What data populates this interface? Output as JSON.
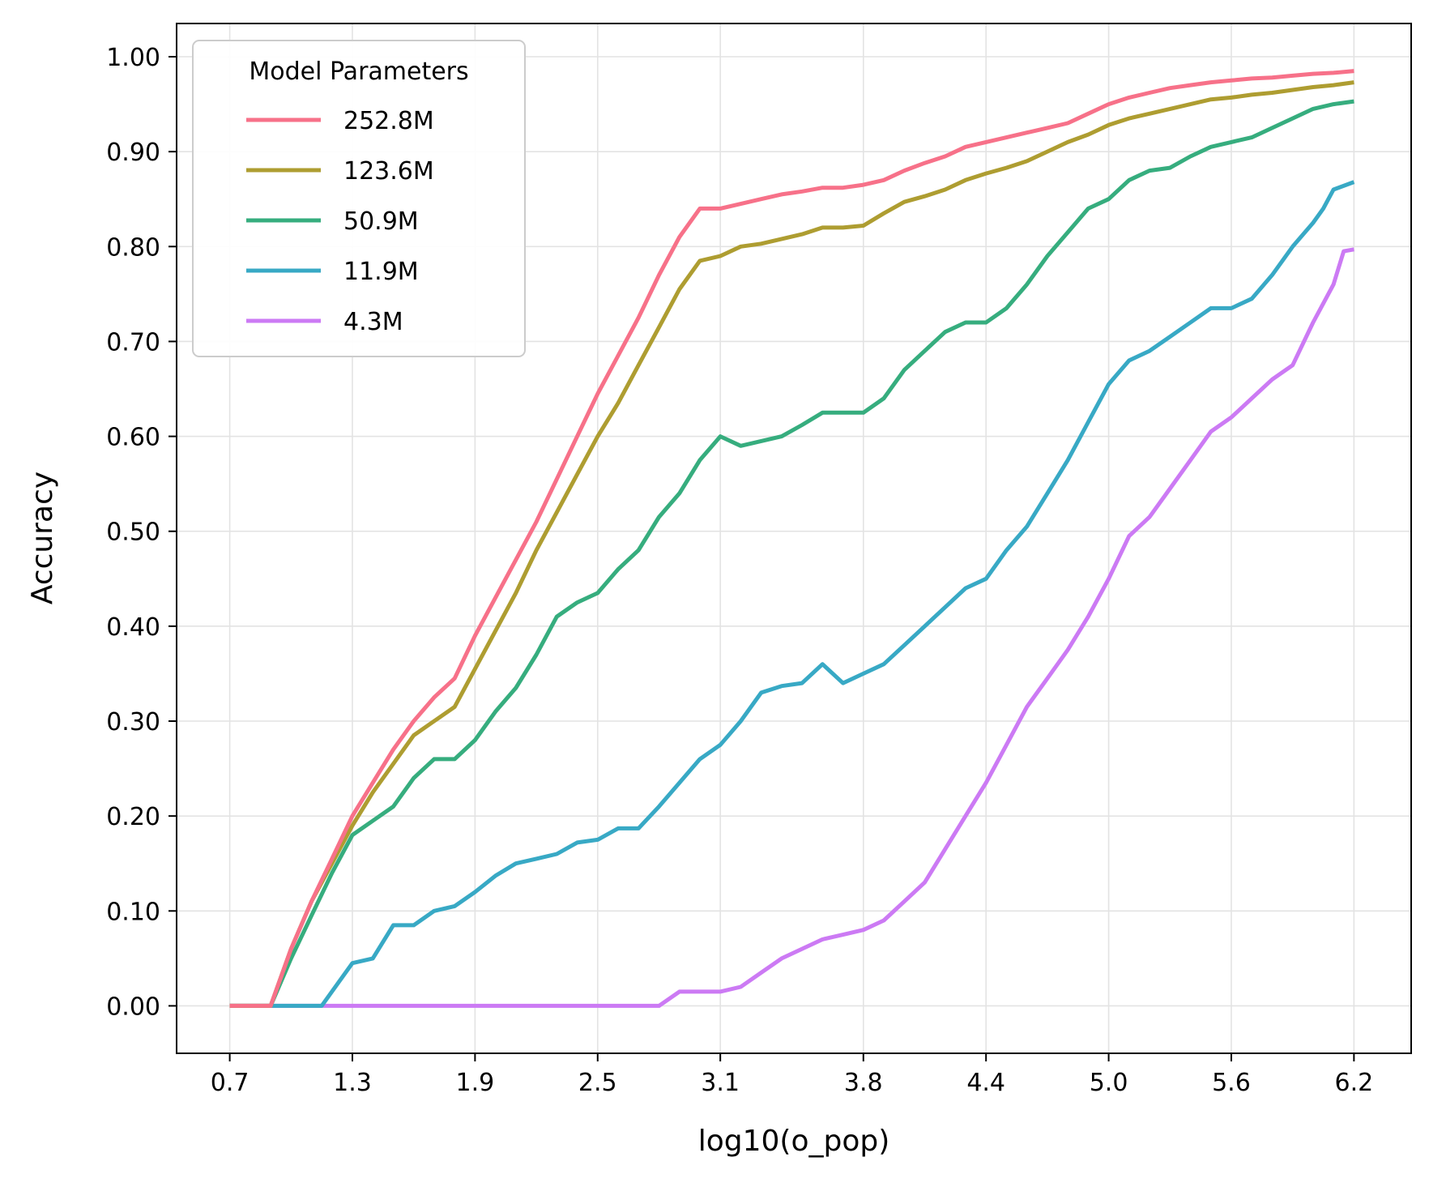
{
  "chart_data": {
    "type": "line",
    "title": "",
    "xlabel": "log10(o_pop)",
    "ylabel": "Accuracy",
    "xlim": [
      0.44,
      6.48
    ],
    "ylim": [
      -0.05,
      1.035
    ],
    "grid": true,
    "x_ticks": [
      0.7,
      1.3,
      1.9,
      2.5,
      3.1,
      3.8,
      4.4,
      5.0,
      5.6,
      6.2
    ],
    "x_tick_labels": [
      "0.7",
      "1.3",
      "1.9",
      "2.5",
      "3.1",
      "3.8",
      "4.4",
      "5.0",
      "5.6",
      "6.2"
    ],
    "y_ticks": [
      0.0,
      0.1,
      0.2,
      0.3,
      0.4,
      0.5,
      0.6,
      0.7,
      0.8,
      0.9,
      1.0
    ],
    "y_tick_labels": [
      "0.00",
      "0.10",
      "0.20",
      "0.30",
      "0.40",
      "0.50",
      "0.60",
      "0.70",
      "0.80",
      "0.90",
      "1.00"
    ],
    "legend": {
      "title": "Model Parameters",
      "placement": "top-left"
    },
    "series": [
      {
        "name": "252.8M",
        "color": "#f77189",
        "points": [
          [
            0.7,
            0.0
          ],
          [
            0.9,
            0.0
          ],
          [
            1.0,
            0.06
          ],
          [
            1.1,
            0.11
          ],
          [
            1.2,
            0.155
          ],
          [
            1.3,
            0.2
          ],
          [
            1.4,
            0.235
          ],
          [
            1.5,
            0.27
          ],
          [
            1.6,
            0.3
          ],
          [
            1.7,
            0.325
          ],
          [
            1.8,
            0.345
          ],
          [
            1.9,
            0.39
          ],
          [
            2.0,
            0.43
          ],
          [
            2.1,
            0.47
          ],
          [
            2.2,
            0.51
          ],
          [
            2.3,
            0.555
          ],
          [
            2.4,
            0.6
          ],
          [
            2.5,
            0.645
          ],
          [
            2.6,
            0.685
          ],
          [
            2.7,
            0.725
          ],
          [
            2.8,
            0.77
          ],
          [
            2.9,
            0.81
          ],
          [
            3.0,
            0.84
          ],
          [
            3.1,
            0.84
          ],
          [
            3.2,
            0.845
          ],
          [
            3.3,
            0.85
          ],
          [
            3.4,
            0.855
          ],
          [
            3.5,
            0.858
          ],
          [
            3.6,
            0.862
          ],
          [
            3.7,
            0.862
          ],
          [
            3.8,
            0.865
          ],
          [
            3.9,
            0.87
          ],
          [
            4.0,
            0.88
          ],
          [
            4.1,
            0.888
          ],
          [
            4.2,
            0.895
          ],
          [
            4.3,
            0.905
          ],
          [
            4.4,
            0.91
          ],
          [
            4.5,
            0.915
          ],
          [
            4.6,
            0.92
          ],
          [
            4.7,
            0.925
          ],
          [
            4.8,
            0.93
          ],
          [
            4.9,
            0.94
          ],
          [
            5.0,
            0.95
          ],
          [
            5.1,
            0.957
          ],
          [
            5.2,
            0.962
          ],
          [
            5.3,
            0.967
          ],
          [
            5.4,
            0.97
          ],
          [
            5.5,
            0.973
          ],
          [
            5.6,
            0.975
          ],
          [
            5.7,
            0.977
          ],
          [
            5.8,
            0.978
          ],
          [
            5.9,
            0.98
          ],
          [
            6.0,
            0.982
          ],
          [
            6.1,
            0.983
          ],
          [
            6.2,
            0.985
          ]
        ]
      },
      {
        "name": "123.6M",
        "color": "#ae9d31",
        "points": [
          [
            0.7,
            0.0
          ],
          [
            0.9,
            0.0
          ],
          [
            1.0,
            0.06
          ],
          [
            1.1,
            0.11
          ],
          [
            1.2,
            0.15
          ],
          [
            1.3,
            0.19
          ],
          [
            1.4,
            0.225
          ],
          [
            1.5,
            0.255
          ],
          [
            1.6,
            0.285
          ],
          [
            1.7,
            0.3
          ],
          [
            1.8,
            0.315
          ],
          [
            1.9,
            0.355
          ],
          [
            2.0,
            0.395
          ],
          [
            2.1,
            0.435
          ],
          [
            2.2,
            0.48
          ],
          [
            2.3,
            0.52
          ],
          [
            2.4,
            0.56
          ],
          [
            2.5,
            0.6
          ],
          [
            2.6,
            0.635
          ],
          [
            2.7,
            0.675
          ],
          [
            2.8,
            0.715
          ],
          [
            2.9,
            0.755
          ],
          [
            3.0,
            0.785
          ],
          [
            3.1,
            0.79
          ],
          [
            3.2,
            0.8
          ],
          [
            3.3,
            0.803
          ],
          [
            3.4,
            0.808
          ],
          [
            3.5,
            0.813
          ],
          [
            3.6,
            0.82
          ],
          [
            3.7,
            0.82
          ],
          [
            3.8,
            0.822
          ],
          [
            3.9,
            0.835
          ],
          [
            4.0,
            0.847
          ],
          [
            4.1,
            0.853
          ],
          [
            4.2,
            0.86
          ],
          [
            4.3,
            0.87
          ],
          [
            4.4,
            0.877
          ],
          [
            4.5,
            0.883
          ],
          [
            4.6,
            0.89
          ],
          [
            4.7,
            0.9
          ],
          [
            4.8,
            0.91
          ],
          [
            4.9,
            0.918
          ],
          [
            5.0,
            0.928
          ],
          [
            5.1,
            0.935
          ],
          [
            5.2,
            0.94
          ],
          [
            5.3,
            0.945
          ],
          [
            5.4,
            0.95
          ],
          [
            5.5,
            0.955
          ],
          [
            5.6,
            0.957
          ],
          [
            5.7,
            0.96
          ],
          [
            5.8,
            0.962
          ],
          [
            5.9,
            0.965
          ],
          [
            6.0,
            0.968
          ],
          [
            6.1,
            0.97
          ],
          [
            6.2,
            0.973
          ]
        ]
      },
      {
        "name": "50.9M",
        "color": "#36ad7e",
        "points": [
          [
            0.7,
            0.0
          ],
          [
            0.9,
            0.0
          ],
          [
            1.0,
            0.05
          ],
          [
            1.1,
            0.095
          ],
          [
            1.2,
            0.14
          ],
          [
            1.3,
            0.18
          ],
          [
            1.4,
            0.195
          ],
          [
            1.5,
            0.21
          ],
          [
            1.6,
            0.24
          ],
          [
            1.7,
            0.26
          ],
          [
            1.8,
            0.26
          ],
          [
            1.9,
            0.28
          ],
          [
            2.0,
            0.31
          ],
          [
            2.1,
            0.335
          ],
          [
            2.2,
            0.37
          ],
          [
            2.3,
            0.41
          ],
          [
            2.4,
            0.425
          ],
          [
            2.5,
            0.435
          ],
          [
            2.6,
            0.46
          ],
          [
            2.7,
            0.48
          ],
          [
            2.8,
            0.515
          ],
          [
            2.9,
            0.54
          ],
          [
            3.0,
            0.575
          ],
          [
            3.1,
            0.6
          ],
          [
            3.2,
            0.59
          ],
          [
            3.3,
            0.595
          ],
          [
            3.4,
            0.6
          ],
          [
            3.5,
            0.612
          ],
          [
            3.6,
            0.625
          ],
          [
            3.7,
            0.625
          ],
          [
            3.8,
            0.625
          ],
          [
            3.9,
            0.64
          ],
          [
            4.0,
            0.67
          ],
          [
            4.1,
            0.69
          ],
          [
            4.2,
            0.71
          ],
          [
            4.3,
            0.72
          ],
          [
            4.4,
            0.72
          ],
          [
            4.5,
            0.735
          ],
          [
            4.6,
            0.76
          ],
          [
            4.7,
            0.79
          ],
          [
            4.8,
            0.815
          ],
          [
            4.9,
            0.84
          ],
          [
            5.0,
            0.85
          ],
          [
            5.1,
            0.87
          ],
          [
            5.2,
            0.88
          ],
          [
            5.3,
            0.883
          ],
          [
            5.4,
            0.895
          ],
          [
            5.5,
            0.905
          ],
          [
            5.6,
            0.91
          ],
          [
            5.7,
            0.915
          ],
          [
            5.8,
            0.925
          ],
          [
            5.9,
            0.935
          ],
          [
            6.0,
            0.945
          ],
          [
            6.1,
            0.95
          ],
          [
            6.2,
            0.953
          ]
        ]
      },
      {
        "name": "11.9M",
        "color": "#38a9c5",
        "points": [
          [
            0.7,
            0.0
          ],
          [
            1.15,
            0.0
          ],
          [
            1.3,
            0.045
          ],
          [
            1.4,
            0.05
          ],
          [
            1.5,
            0.085
          ],
          [
            1.6,
            0.085
          ],
          [
            1.7,
            0.1
          ],
          [
            1.8,
            0.105
          ],
          [
            1.9,
            0.12
          ],
          [
            2.0,
            0.137
          ],
          [
            2.1,
            0.15
          ],
          [
            2.2,
            0.155
          ],
          [
            2.3,
            0.16
          ],
          [
            2.4,
            0.172
          ],
          [
            2.5,
            0.175
          ],
          [
            2.6,
            0.187
          ],
          [
            2.7,
            0.187
          ],
          [
            2.8,
            0.21
          ],
          [
            2.9,
            0.235
          ],
          [
            3.0,
            0.26
          ],
          [
            3.1,
            0.275
          ],
          [
            3.2,
            0.3
          ],
          [
            3.3,
            0.33
          ],
          [
            3.4,
            0.337
          ],
          [
            3.5,
            0.34
          ],
          [
            3.6,
            0.36
          ],
          [
            3.7,
            0.34
          ],
          [
            3.8,
            0.35
          ],
          [
            3.9,
            0.36
          ],
          [
            4.0,
            0.38
          ],
          [
            4.1,
            0.4
          ],
          [
            4.2,
            0.42
          ],
          [
            4.3,
            0.44
          ],
          [
            4.4,
            0.45
          ],
          [
            4.5,
            0.48
          ],
          [
            4.6,
            0.505
          ],
          [
            4.7,
            0.54
          ],
          [
            4.8,
            0.575
          ],
          [
            4.9,
            0.615
          ],
          [
            5.0,
            0.655
          ],
          [
            5.1,
            0.68
          ],
          [
            5.2,
            0.69
          ],
          [
            5.3,
            0.705
          ],
          [
            5.4,
            0.72
          ],
          [
            5.5,
            0.735
          ],
          [
            5.6,
            0.735
          ],
          [
            5.7,
            0.745
          ],
          [
            5.8,
            0.77
          ],
          [
            5.9,
            0.8
          ],
          [
            6.0,
            0.825
          ],
          [
            6.05,
            0.84
          ],
          [
            6.1,
            0.86
          ],
          [
            6.2,
            0.868
          ]
        ]
      },
      {
        "name": "4.3M",
        "color": "#cc7af4",
        "points": [
          [
            0.7,
            0.0
          ],
          [
            2.8,
            0.0
          ],
          [
            2.9,
            0.015
          ],
          [
            3.0,
            0.015
          ],
          [
            3.1,
            0.015
          ],
          [
            3.2,
            0.02
          ],
          [
            3.3,
            0.035
          ],
          [
            3.4,
            0.05
          ],
          [
            3.5,
            0.06
          ],
          [
            3.6,
            0.07
          ],
          [
            3.7,
            0.075
          ],
          [
            3.8,
            0.08
          ],
          [
            3.9,
            0.09
          ],
          [
            4.0,
            0.11
          ],
          [
            4.1,
            0.13
          ],
          [
            4.2,
            0.165
          ],
          [
            4.3,
            0.2
          ],
          [
            4.4,
            0.235
          ],
          [
            4.5,
            0.275
          ],
          [
            4.6,
            0.315
          ],
          [
            4.7,
            0.345
          ],
          [
            4.8,
            0.375
          ],
          [
            4.9,
            0.41
          ],
          [
            5.0,
            0.45
          ],
          [
            5.1,
            0.495
          ],
          [
            5.2,
            0.515
          ],
          [
            5.3,
            0.545
          ],
          [
            5.4,
            0.575
          ],
          [
            5.5,
            0.605
          ],
          [
            5.6,
            0.62
          ],
          [
            5.7,
            0.64
          ],
          [
            5.8,
            0.66
          ],
          [
            5.9,
            0.675
          ],
          [
            6.0,
            0.72
          ],
          [
            6.1,
            0.76
          ],
          [
            6.15,
            0.795
          ],
          [
            6.2,
            0.797
          ]
        ]
      }
    ]
  }
}
